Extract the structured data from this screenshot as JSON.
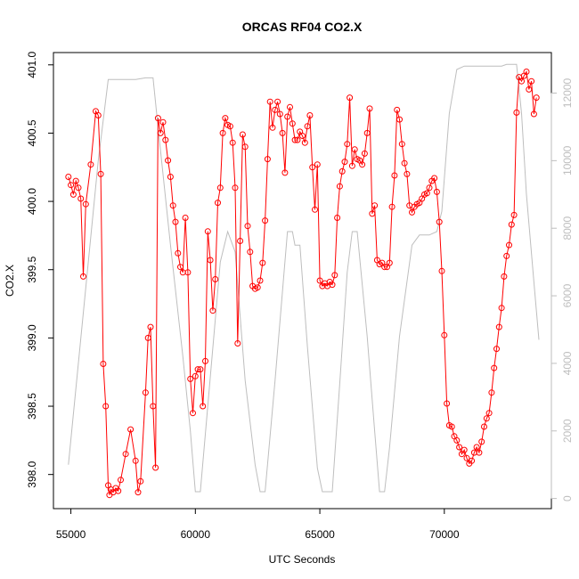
{
  "chart_data": {
    "type": "line",
    "title": "ORCAS RF04 CO2.X",
    "xlabel": "UTC Seconds",
    "ylabel": "CO2.X",
    "xlim": [
      54300,
      74300
    ],
    "ylim": [
      397.75,
      401.09
    ],
    "y2lim": [
      -300,
      13200
    ],
    "x_ticks": [
      55000,
      60000,
      65000,
      70000
    ],
    "x_tick_labels": [
      "55000",
      "60000",
      "65000",
      "70000"
    ],
    "y_ticks": [
      398.0,
      398.5,
      399.0,
      399.5,
      400.0,
      400.5,
      401.0
    ],
    "y_tick_labels": [
      "398.0",
      "398.5",
      "399.0",
      "399.5",
      "400.0",
      "400.5",
      "401.0"
    ],
    "y2_ticks": [
      0,
      2000,
      4000,
      6000,
      8000,
      10000,
      12000
    ],
    "y2_tick_labels": [
      "0",
      "2000",
      "4000",
      "6000",
      "8000",
      "10000",
      "12000"
    ],
    "grid": false,
    "series": [
      {
        "color": "#ff0000",
        "marker": "open-circle",
        "axis": "left",
        "x": [
          54900,
          55000,
          55100,
          55200,
          55300,
          55400,
          55500,
          55600,
          55800,
          56000,
          56100,
          56200,
          56300,
          56400,
          56500,
          56550,
          56600,
          56700,
          56800,
          56900,
          57000,
          57200,
          57400,
          57600,
          57700,
          57800,
          58000,
          58100,
          58200,
          58300,
          58400,
          58500,
          58600,
          58700,
          58800,
          58900,
          59000,
          59100,
          59200,
          59300,
          59400,
          59500,
          59600,
          59700,
          59800,
          59900,
          60000,
          60100,
          60200,
          60300,
          60400,
          60500,
          60600,
          60700,
          60800,
          60900,
          61000,
          61100,
          61200,
          61300,
          61400,
          61500,
          61600,
          61700,
          61800,
          61900,
          62000,
          62100,
          62200,
          62300,
          62400,
          62500,
          62600,
          62700,
          62800,
          62900,
          63000,
          63100,
          63200,
          63300,
          63400,
          63500,
          63600,
          63700,
          63800,
          63900,
          64000,
          64100,
          64200,
          64300,
          64400,
          64500,
          64600,
          64700,
          64800,
          64900,
          65000,
          65100,
          65200,
          65300,
          65400,
          65500,
          65600,
          65700,
          65800,
          65900,
          66000,
          66100,
          66200,
          66300,
          66400,
          66500,
          66600,
          66700,
          66800,
          66900,
          67000,
          67100,
          67200,
          67300,
          67400,
          67500,
          67600,
          67700,
          67800,
          67900,
          68000,
          68100,
          68200,
          68300,
          68400,
          68500,
          68600,
          68700,
          68800,
          68900,
          69000,
          69100,
          69200,
          69300,
          69400,
          69500,
          69600,
          69700,
          69800,
          69900,
          70000,
          70100,
          70200,
          70300,
          70400,
          70500,
          70600,
          70700,
          70800,
          70900,
          71000,
          71100,
          71200,
          71300,
          71400,
          71500,
          71600,
          71700,
          71800,
          71900,
          72000,
          72100,
          72200,
          72300,
          72400,
          72500,
          72600,
          72700,
          72800,
          72900,
          73000,
          73100,
          73200,
          73300,
          73400,
          73500,
          73600,
          73700
        ],
        "y": [
          400.18,
          400.12,
          400.05,
          400.15,
          400.1,
          400.02,
          399.45,
          399.98,
          400.27,
          400.66,
          400.63,
          400.2,
          398.81,
          398.5,
          397.92,
          397.85,
          397.89,
          397.87,
          397.9,
          397.88,
          397.96,
          398.15,
          398.33,
          398.1,
          397.87,
          397.95,
          398.6,
          399.0,
          399.08,
          398.5,
          398.05,
          400.61,
          400.5,
          400.58,
          400.45,
          400.3,
          400.18,
          399.97,
          399.85,
          399.62,
          399.52,
          399.48,
          399.88,
          399.48,
          398.7,
          398.45,
          398.72,
          398.77,
          398.77,
          398.5,
          398.83,
          399.78,
          399.57,
          399.2,
          399.43,
          399.99,
          400.1,
          400.5,
          400.61,
          400.56,
          400.55,
          400.43,
          400.1,
          398.96,
          399.71,
          400.49,
          400.4,
          399.82,
          399.63,
          399.38,
          399.36,
          399.37,
          399.42,
          399.55,
          399.86,
          400.31,
          400.73,
          400.54,
          400.67,
          400.73,
          400.64,
          400.5,
          400.21,
          400.62,
          400.69,
          400.57,
          400.45,
          400.45,
          400.51,
          400.48,
          400.43,
          400.55,
          400.63,
          400.25,
          399.94,
          400.27,
          399.42,
          399.38,
          399.4,
          399.38,
          399.41,
          399.39,
          399.46,
          399.88,
          400.11,
          400.22,
          400.29,
          400.42,
          400.76,
          400.26,
          400.38,
          400.31,
          400.3,
          400.27,
          400.35,
          400.5,
          400.68,
          399.91,
          399.97,
          399.57,
          399.54,
          399.55,
          399.52,
          399.52,
          399.55,
          399.96,
          400.19,
          400.67,
          400.6,
          400.42,
          400.28,
          400.2,
          399.97,
          399.92,
          399.96,
          399.98,
          399.99,
          400.02,
          400.05,
          400.06,
          400.1,
          400.15,
          400.17,
          400.07,
          399.85,
          399.49,
          399.02,
          398.52,
          398.36,
          398.35,
          398.28,
          398.25,
          398.2,
          398.15,
          398.18,
          398.12,
          398.08,
          398.1,
          398.16,
          398.2,
          398.16,
          398.24,
          398.35,
          398.41,
          398.45,
          398.6,
          398.78,
          398.92,
          399.08,
          399.22,
          399.45,
          399.6,
          399.68,
          399.83,
          399.9,
          400.65,
          400.91,
          400.88,
          400.92,
          400.95,
          400.82,
          400.88,
          400.64,
          400.76
        ],
        "name": ""
      },
      {
        "color": "#bebebe",
        "marker": "none",
        "axis": "right",
        "x": [
          54900,
          56100,
          56500,
          56900,
          57200,
          57600,
          58000,
          58300,
          58500,
          59000,
          59500,
          59800,
          60000,
          60200,
          60600,
          61000,
          61300,
          61600,
          62000,
          62400,
          62600,
          62800,
          63200,
          63700,
          63900,
          64000,
          64200,
          64500,
          64900,
          65100,
          65300,
          65500,
          65800,
          66100,
          66300,
          66500,
          66900,
          67200,
          67400,
          67600,
          67800,
          68200,
          68700,
          69000,
          69400,
          69700,
          69900,
          70200,
          70500,
          70800,
          71100,
          71400,
          71700,
          72000,
          72300,
          72500,
          72700,
          72900,
          73100,
          73300,
          73600,
          73800
        ],
        "y": [
          1000,
          10000,
          12400,
          12400,
          12400,
          12400,
          12450,
          12450,
          11000,
          7500,
          4200,
          2000,
          200,
          200,
          3600,
          7000,
          7900,
          7300,
          3500,
          1000,
          200,
          200,
          3500,
          7900,
          7900,
          7500,
          7500,
          4500,
          900,
          200,
          200,
          200,
          3400,
          6700,
          7900,
          7900,
          4800,
          2000,
          200,
          200,
          1500,
          4800,
          7500,
          7800,
          7800,
          7900,
          8500,
          11400,
          12700,
          12800,
          12800,
          12800,
          12800,
          12800,
          12800,
          12850,
          12850,
          12850,
          11400,
          9000,
          6400,
          4700
        ],
        "name": ""
      }
    ]
  }
}
